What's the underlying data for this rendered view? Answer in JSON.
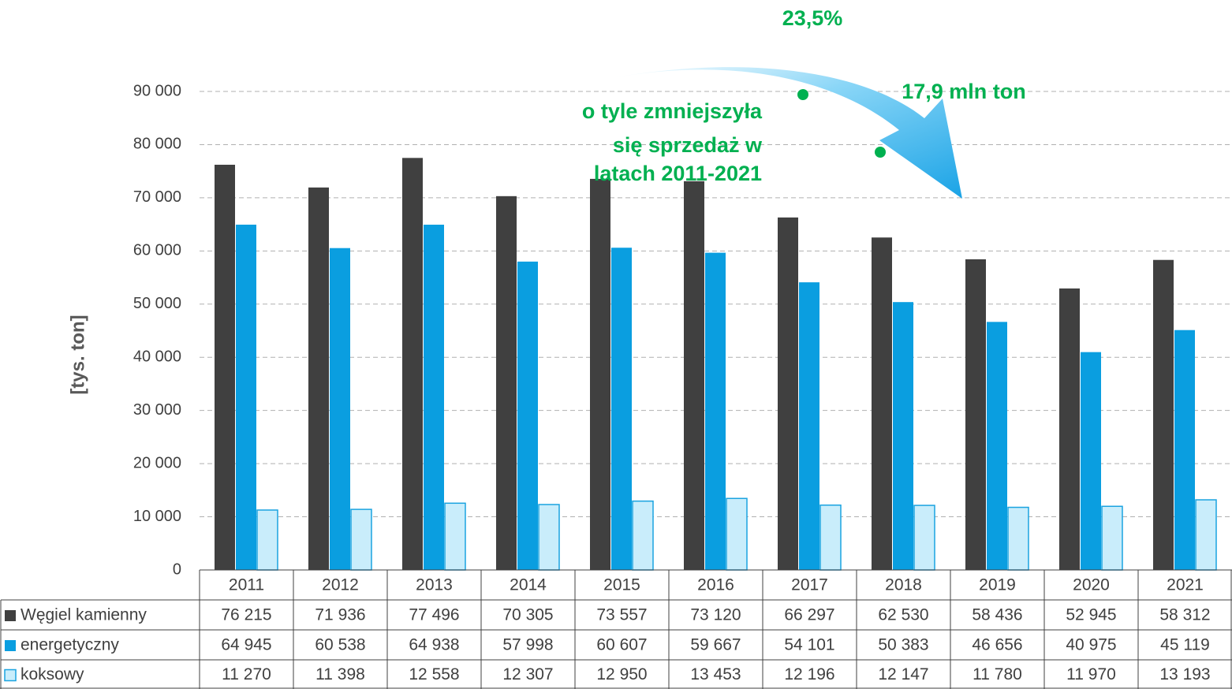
{
  "chart_data": {
    "type": "bar",
    "y_label": "[tys. ton]",
    "categories": [
      "2011",
      "2012",
      "2013",
      "2014",
      "2015",
      "2016",
      "2017",
      "2018",
      "2019",
      "2020",
      "2021"
    ],
    "series": [
      {
        "name": "Węgiel kamienny",
        "color": "#404040",
        "values": [
          76215,
          71936,
          77496,
          70305,
          73557,
          73120,
          66297,
          62530,
          58436,
          52945,
          58312
        ],
        "value_labels": [
          "76 215",
          "71 936",
          "77 496",
          "70 305",
          "73 557",
          "73 120",
          "66 297",
          "62 530",
          "58 436",
          "52 945",
          "58 312"
        ]
      },
      {
        "name": "energetyczny",
        "color": "#0a9ee0",
        "values": [
          64945,
          60538,
          64938,
          57998,
          60607,
          59667,
          54101,
          50383,
          46656,
          40975,
          45119
        ],
        "value_labels": [
          "64 945",
          "60 538",
          "64 938",
          "57 998",
          "60 607",
          "59 667",
          "54 101",
          "50 383",
          "46 656",
          "40 975",
          "45 119"
        ]
      },
      {
        "name": "koksowy",
        "color": "#c9edfb",
        "values": [
          11270,
          11398,
          12558,
          12307,
          12950,
          13453,
          12196,
          12147,
          11780,
          11970,
          13193
        ],
        "value_labels": [
          "11 270",
          "11 398",
          "12 558",
          "12 307",
          "12 950",
          "13 453",
          "12 196",
          "12 147",
          "11 780",
          "11 970",
          "13 193"
        ]
      }
    ],
    "ylim": [
      0,
      90000
    ],
    "yticks": [
      0,
      {
        "value": 10000,
        "label": "10 000"
      },
      {
        "value": 20000,
        "label": "20 000"
      },
      {
        "value": 30000,
        "label": "30 000"
      },
      {
        "value": 40000,
        "label": "40 000"
      },
      {
        "value": 50000,
        "label": "50 000"
      },
      {
        "value": 60000,
        "label": "60 000"
      },
      {
        "value": 70000,
        "label": "70 000"
      },
      {
        "value": 80000,
        "label": "80 000"
      },
      {
        "value": 90000,
        "label": "90 000"
      }
    ],
    "grid": true,
    "annotations": [
      "23,5%",
      "17,9 mln ton",
      "o tyle zmniejszyła",
      "się sprzedaż w",
      "latach 2011-2021"
    ]
  }
}
